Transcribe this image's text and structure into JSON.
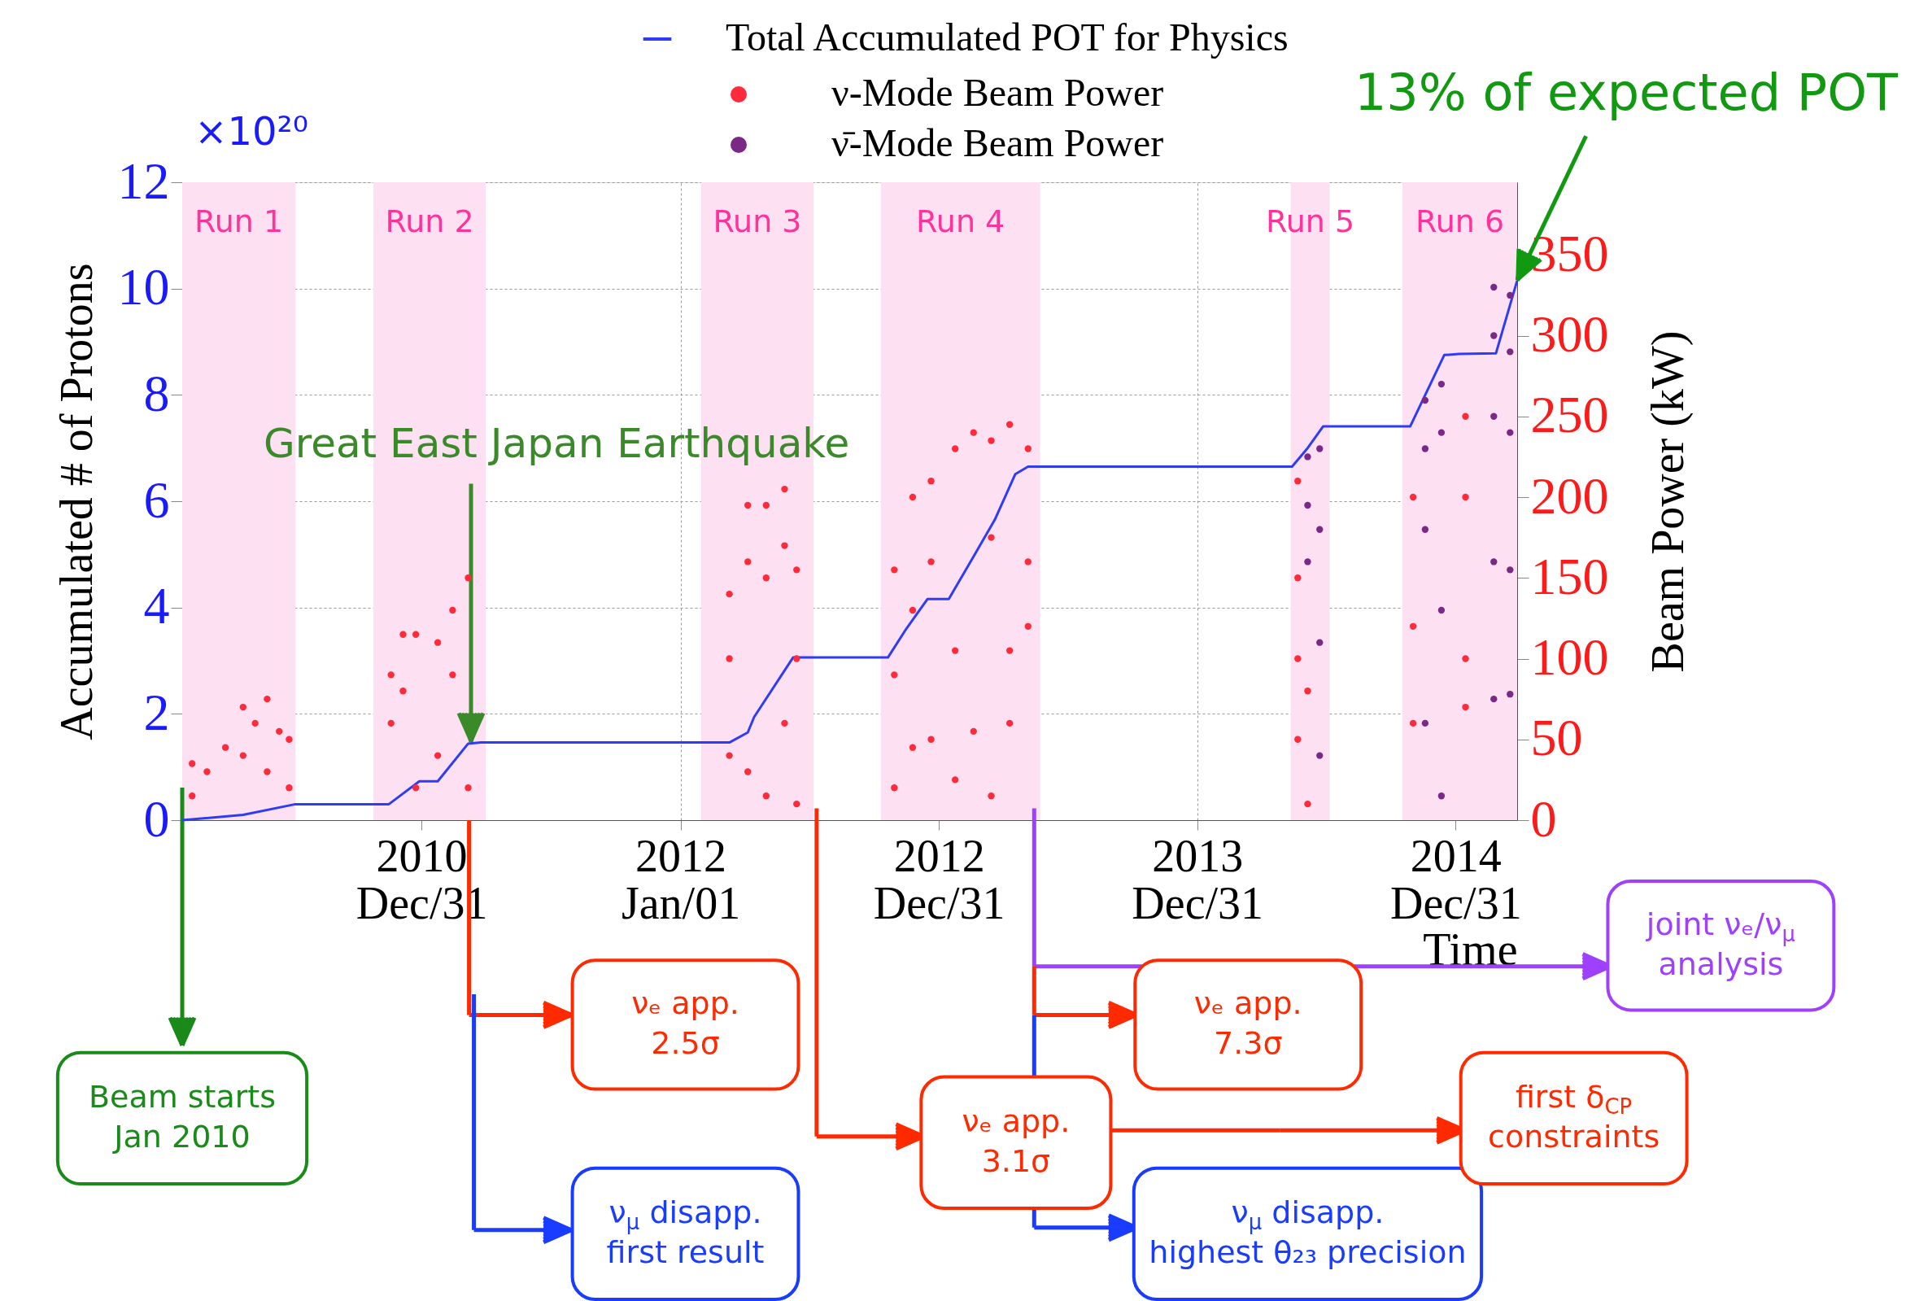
{
  "chart_data": {
    "type": "line",
    "xlabel": "Time",
    "ylabel": "Accumulated # of Protons",
    "y2label": "Beam Power (kW)",
    "xlim": [
      "2010-01-27",
      "2015-03-28"
    ],
    "xticks": [
      {
        "value": "2010-12-31",
        "label": "2010 Dec/31"
      },
      {
        "value": "2012-01-01",
        "label": "2012 Jan/01"
      },
      {
        "value": "2012-12-31",
        "label": "2012 Dec/31"
      },
      {
        "value": "2013-12-31",
        "label": "2013 Dec/31"
      },
      {
        "value": "2014-12-31",
        "label": "2014 Dec/31"
      }
    ],
    "ylim": [
      0,
      12
    ],
    "yticks": [
      0,
      2,
      4,
      6,
      8,
      10,
      12
    ],
    "y2lim": [
      0,
      395
    ],
    "y2ticks": [
      0,
      50,
      100,
      150,
      200,
      250,
      300,
      350
    ],
    "grid": true,
    "legend": "top",
    "series": [
      {
        "name": "Total Accumulated POT for Physics",
        "color": "#2f3cf5",
        "type": "line",
        "x": [
          "2010-01-27",
          "2010-04-23",
          "2010-07-06",
          "2010-11-15",
          "2010-12-28",
          "2011-01-23",
          "2011-03-07",
          "2011-03-25",
          "2012-03-10",
          "2012-04-05",
          "2012-04-14",
          "2012-06-08",
          "2012-10-20",
          "2012-11-15",
          "2012-12-15",
          "2013-01-14",
          "2013-02-18",
          "2013-03-20",
          "2013-04-18",
          "2013-05-06",
          "2014-05-14",
          "2014-06-05",
          "2014-06-27",
          "2014-10-28",
          "2014-12-15",
          "2015-01-05",
          "2015-02-26",
          "2015-03-28"
        ],
        "values": [
          0,
          0.1,
          0.3,
          0.3,
          0.73,
          0.73,
          1.44,
          1.46,
          1.46,
          1.65,
          1.94,
          3.06,
          3.06,
          3.6,
          4.16,
          4.16,
          4.96,
          5.65,
          6.51,
          6.65,
          6.65,
          7.0,
          7.41,
          7.41,
          8.75,
          8.77,
          8.78,
          10.15
        ]
      },
      {
        "name": "ν-Mode Beam Power",
        "color": "#ff2a3a",
        "type": "scatter",
        "axis": "y2",
        "x": [
          "2010-02-10",
          "2010-02-10",
          "2010-03-03",
          "2010-03-29",
          "2010-04-23",
          "2010-04-23",
          "2010-05-10",
          "2010-05-27",
          "2010-05-27",
          "2010-06-13",
          "2010-06-27",
          "2010-06-27",
          "2010-11-18",
          "2010-11-18",
          "2010-12-05",
          "2010-12-05",
          "2010-12-23",
          "2010-12-23",
          "2011-01-23",
          "2011-01-23",
          "2011-02-13",
          "2011-02-13",
          "2011-03-07",
          "2011-03-07",
          "2012-03-10",
          "2012-03-10",
          "2012-03-10",
          "2012-04-05",
          "2012-04-05",
          "2012-04-05",
          "2012-05-01",
          "2012-05-01",
          "2012-05-01",
          "2012-05-27",
          "2012-05-27",
          "2012-05-27",
          "2012-06-13",
          "2012-06-13",
          "2012-06-13",
          "2012-10-29",
          "2012-10-29",
          "2012-10-29",
          "2012-11-24",
          "2012-11-24",
          "2012-11-24",
          "2012-12-20",
          "2012-12-20",
          "2012-12-20",
          "2013-01-23",
          "2013-01-23",
          "2013-01-23",
          "2013-02-18",
          "2013-02-18",
          "2013-03-15",
          "2013-03-15",
          "2013-03-15",
          "2013-04-10",
          "2013-04-10",
          "2013-04-10",
          "2013-05-06",
          "2013-05-06",
          "2013-05-06",
          "2014-05-22",
          "2014-05-22",
          "2014-05-22",
          "2014-05-22",
          "2014-06-05",
          "2014-06-05",
          "2014-11-01",
          "2014-11-01",
          "2014-11-01",
          "2015-01-14",
          "2015-01-14",
          "2015-01-14",
          "2015-01-14"
        ],
        "values": [
          15,
          35,
          30,
          45,
          70,
          40,
          60,
          75,
          30,
          55,
          50,
          20,
          90,
          60,
          115,
          80,
          115,
          20,
          110,
          40,
          130,
          90,
          150,
          20,
          140,
          100,
          40,
          195,
          160,
          30,
          195,
          150,
          15,
          205,
          170,
          60,
          155,
          100,
          10,
          155,
          90,
          20,
          200,
          130,
          45,
          210,
          160,
          50,
          230,
          105,
          25,
          240,
          55,
          235,
          175,
          15,
          245,
          105,
          60,
          230,
          160,
          120,
          210,
          150,
          100,
          50,
          80,
          10,
          200,
          120,
          60,
          250,
          200,
          100,
          70
        ]
      },
      {
        "name": "ν̄-Mode Beam Power",
        "color": "#7a2a86",
        "type": "scatter",
        "axis": "y2",
        "x": [
          "2014-06-05",
          "2014-06-05",
          "2014-06-05",
          "2014-06-22",
          "2014-06-22",
          "2014-06-22",
          "2014-06-22",
          "2014-11-18",
          "2014-11-18",
          "2014-11-18",
          "2014-11-18",
          "2014-12-11",
          "2014-12-11",
          "2014-12-11",
          "2014-12-11",
          "2015-02-23",
          "2015-02-23",
          "2015-02-23",
          "2015-02-23",
          "2015-02-23",
          "2015-03-18",
          "2015-03-18",
          "2015-03-18",
          "2015-03-18",
          "2015-03-18"
        ],
        "values": [
          225,
          195,
          160,
          230,
          180,
          110,
          40,
          260,
          230,
          180,
          60,
          270,
          240,
          130,
          15,
          330,
          300,
          250,
          160,
          75,
          325,
          290,
          240,
          155,
          78
        ]
      }
    ],
    "bands": [
      {
        "axis": "x",
        "from": "2010-01-27",
        "to": "2010-07-06",
        "label": "Run 1",
        "color": "#fde0f2"
      },
      {
        "axis": "x",
        "from": "2010-10-24",
        "to": "2011-04-01",
        "label": "Run 2",
        "color": "#fde0f2"
      },
      {
        "axis": "x",
        "from": "2012-01-30",
        "to": "2012-07-07",
        "label": "Run 3",
        "color": "#fde0f2"
      },
      {
        "axis": "x",
        "from": "2012-10-10",
        "to": "2013-05-23",
        "label": "Run 4",
        "color": "#fde0f2"
      },
      {
        "axis": "x",
        "from": "2014-05-12",
        "to": "2014-07-06",
        "label": "Run 5",
        "color": "#fde0f2"
      },
      {
        "axis": "x",
        "from": "2014-10-17",
        "to": "2015-03-28",
        "label": "Run 6",
        "color": "#fde0f2"
      }
    ],
    "annotations": [
      "×10²⁰",
      {
        "text": "Great East Japan Earthquake",
        "x": "2011-03-11",
        "y": 1.46
      },
      {
        "text": "13% of expected POT",
        "x": "2015-03-28",
        "y": 10.15
      },
      "Beam starts\nJan 2010",
      "νₑ app.\n2.5σ",
      "ν$_{μ}$ disapp.\nfirst result",
      "νₑ app.\n3.1σ",
      "νₑ app.\n7.3σ",
      "ν$_{μ}$ disapp.\nhighest θ₂₃ precision",
      "first δ$_{CP}$\nconstraints",
      "joint νₑ/ν$_{μ}$\nanalysis"
    ]
  }
}
